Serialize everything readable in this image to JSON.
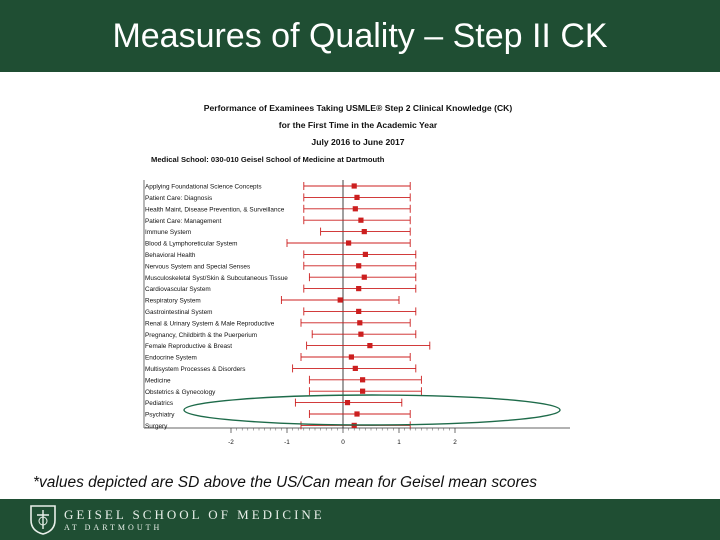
{
  "slide": {
    "title": "Measures of Quality – Step II CK",
    "footnote": "*values depicted are SD above the US/Can mean for Geisel mean scores",
    "footer_school": "GEISEL SCHOOL OF MEDICINE",
    "footer_sub": "AT DARTMOUTH"
  },
  "colors": {
    "brand": "#1f4e33",
    "series": "#cc1f1f",
    "highlight": "#1e6b4a"
  },
  "chart_data": {
    "type": "forest",
    "title_lines": [
      "Performance of Examinees Taking USMLE® Step 2 Clinical Knowledge (CK)",
      "for the First Time in the Academic Year",
      "July 2016 to June 2017"
    ],
    "school_line": "Medical School:  030-010 Geisel School of Medicine at Dartmouth",
    "xlim": [
      -2,
      2
    ],
    "xticks": [
      "-2",
      "-1",
      "0",
      "1",
      "2"
    ],
    "categories": [
      "Applying Foundational Science Concepts",
      "Patient Care: Diagnosis",
      "Health Maint, Disease Prevention, & Surveillance",
      "Patient Care: Management",
      "Immune System",
      "Blood & Lymphoreticular System",
      "Behavioral Health",
      "Nervous System and Special Senses",
      "Musculoskeletal Syst/Skin & Subcutaneous Tissue",
      "Cardiovascular System",
      "Respiratory System",
      "Gastrointestinal System",
      "Renal & Urinary System & Male Reproductive",
      "Pregnancy, Childbirth & the Puerperium",
      "Female Reproductive & Breast",
      "Endocrine System",
      "Multisystem Processes & Disorders",
      "Medicine",
      "Obstetrics & Gynecology",
      "Pediatrics",
      "Psychiatry",
      "Surgery"
    ],
    "estimates": [
      0.2,
      0.25,
      0.22,
      0.32,
      0.38,
      0.1,
      0.4,
      0.28,
      0.38,
      0.28,
      -0.05,
      0.28,
      0.3,
      0.32,
      0.48,
      0.15,
      0.22,
      0.35,
      0.35,
      0.08,
      0.25,
      0.2
    ],
    "lower": [
      -0.7,
      -0.7,
      -0.7,
      -0.7,
      -0.4,
      -1.0,
      -0.7,
      -0.7,
      -0.6,
      -0.7,
      -1.1,
      -0.7,
      -0.75,
      -0.55,
      -0.65,
      -0.75,
      -0.9,
      -0.6,
      -0.6,
      -0.85,
      -0.6,
      -0.75
    ],
    "upper": [
      1.2,
      1.2,
      1.2,
      1.2,
      1.2,
      1.2,
      1.3,
      1.3,
      1.3,
      1.3,
      1.0,
      1.3,
      1.2,
      1.3,
      1.55,
      1.2,
      1.3,
      1.4,
      1.4,
      1.05,
      1.2,
      1.2
    ],
    "highlighted_categories": [
      "Pediatrics",
      "Psychiatry",
      "Surgery"
    ]
  }
}
